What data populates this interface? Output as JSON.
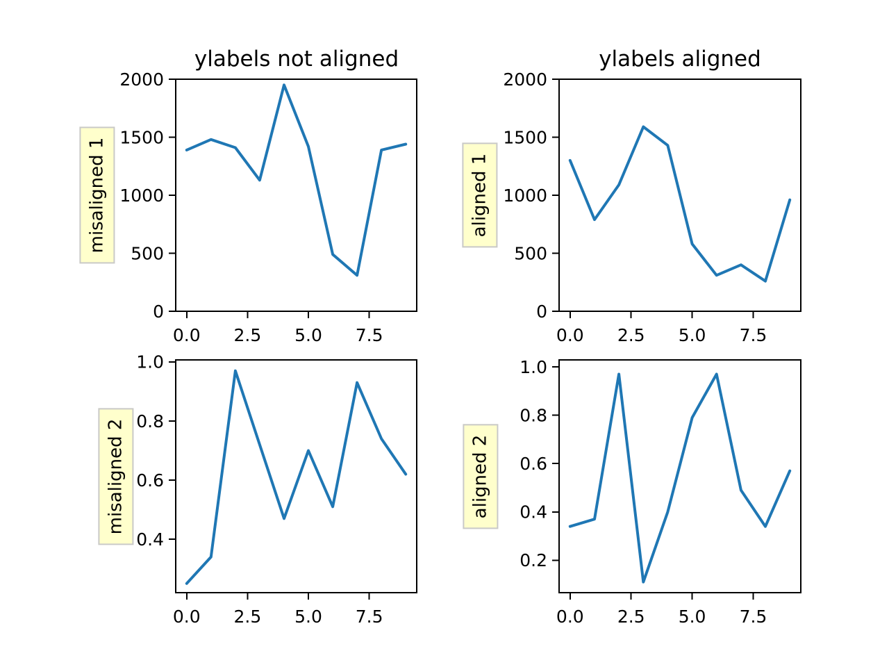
{
  "figure": {
    "background_color": "#ffffff",
    "text_color": "#000000",
    "frame_color": "#000000",
    "column_titles": [
      "ylabels not aligned",
      "ylabels aligned"
    ],
    "label_box_style": {
      "fill": "#ffffcc",
      "border": "#c9c9c9"
    }
  },
  "chart_data": [
    {
      "type": "line",
      "subplot": "top-left",
      "column_title": "ylabels not aligned",
      "ylabel": "misaligned 1",
      "line_color": "#1f77b4",
      "x": [
        0,
        1,
        2,
        3,
        4,
        5,
        6,
        7,
        8,
        9
      ],
      "values": [
        1390,
        1480,
        1410,
        1130,
        1950,
        1420,
        490,
        310,
        1390,
        1440
      ],
      "xlim": [
        -0.45,
        9.45
      ],
      "ylim": [
        0,
        2000
      ],
      "xticks": [
        0,
        2.5,
        5,
        7.5
      ],
      "xtick_labels": [
        "0.0",
        "2.5",
        "5.0",
        "7.5"
      ],
      "yticks": [
        0,
        500,
        1000,
        1500,
        2000
      ],
      "ytick_labels": [
        "0",
        "500",
        "1000",
        "1500",
        "2000"
      ],
      "grid": false,
      "legend": null
    },
    {
      "type": "line",
      "subplot": "top-right",
      "column_title": "ylabels aligned",
      "ylabel": "aligned 1",
      "line_color": "#1f77b4",
      "x": [
        0,
        1,
        2,
        3,
        4,
        5,
        6,
        7,
        8,
        9
      ],
      "values": [
        1300,
        790,
        1090,
        1590,
        1430,
        580,
        310,
        400,
        260,
        960
      ],
      "xlim": [
        -0.45,
        9.45
      ],
      "ylim": [
        0,
        2000
      ],
      "xticks": [
        0,
        2.5,
        5,
        7.5
      ],
      "xtick_labels": [
        "0.0",
        "2.5",
        "5.0",
        "7.5"
      ],
      "yticks": [
        0,
        500,
        1000,
        1500,
        2000
      ],
      "ytick_labels": [
        "0",
        "500",
        "1000",
        "1500",
        "2000"
      ],
      "grid": false,
      "legend": null
    },
    {
      "type": "line",
      "subplot": "bottom-left",
      "column_title": "",
      "ylabel": "misaligned 2",
      "line_color": "#1f77b4",
      "x": [
        0,
        1,
        2,
        3,
        4,
        5,
        6,
        7,
        8,
        9
      ],
      "values": [
        0.25,
        0.34,
        0.97,
        0.72,
        0.47,
        0.7,
        0.51,
        0.93,
        0.74,
        0.62
      ],
      "xlim": [
        -0.45,
        9.45
      ],
      "ylim": [
        0.219,
        1.007
      ],
      "xticks": [
        0,
        2.5,
        5,
        7.5
      ],
      "xtick_labels": [
        "0.0",
        "2.5",
        "5.0",
        "7.5"
      ],
      "yticks": [
        0.4,
        0.6,
        0.8,
        1.0
      ],
      "ytick_labels": [
        "0.4",
        "0.6",
        "0.8",
        "1.0"
      ],
      "grid": false,
      "legend": null
    },
    {
      "type": "line",
      "subplot": "bottom-right",
      "column_title": "",
      "ylabel": "aligned 2",
      "line_color": "#1f77b4",
      "x": [
        0,
        1,
        2,
        3,
        4,
        5,
        6,
        7,
        8,
        9
      ],
      "values": [
        0.34,
        0.37,
        0.97,
        0.11,
        0.4,
        0.79,
        0.97,
        0.49,
        0.34,
        0.57
      ],
      "xlim": [
        -0.45,
        9.45
      ],
      "ylim": [
        0.066,
        1.029
      ],
      "xticks": [
        0,
        2.5,
        5,
        7.5
      ],
      "xtick_labels": [
        "0.0",
        "2.5",
        "5.0",
        "7.5"
      ],
      "yticks": [
        0.2,
        0.4,
        0.6,
        0.8,
        1.0
      ],
      "ytick_labels": [
        "0.2",
        "0.4",
        "0.6",
        "0.8",
        "1.0"
      ],
      "grid": false,
      "legend": null
    }
  ]
}
